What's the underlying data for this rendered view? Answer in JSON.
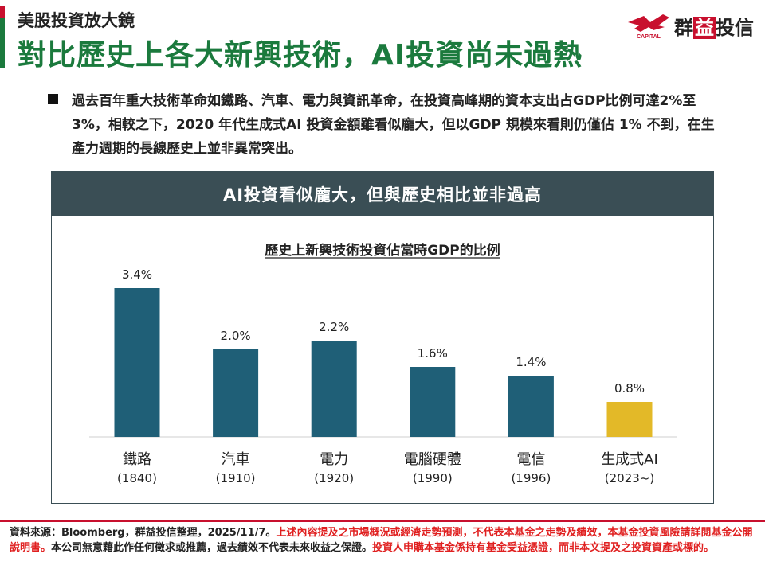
{
  "header": {
    "kicker": "美股投資放大鏡",
    "title": "對比歷史上各大新興技術，AI投資尚未過熱",
    "brand": {
      "name_pre": "群",
      "name_hl": "益",
      "name_post": "投信",
      "logo_icon": "eagle-logo-icon",
      "logo_caption": "CAPITAL"
    }
  },
  "bullet": "過去百年重大技術革命如鐵路、汽車、電力與資訊革命，在投資高峰期的資本支出占GDP比例可達2%至3%，相較之下，2020 年代生成式AI 投資金額雖看似龐大，但以GDP 規模來看則仍僅佔 1% 不到，在生產力週期的長線歷史上並非異常突出。",
  "panel": {
    "title": "AI投資看似龐大，但與歷史相比並非過高"
  },
  "chart_data": {
    "type": "bar",
    "title": "歷史上新興技術投資佔當時GDP的比例",
    "categories": [
      "鐵路",
      "汽車",
      "電力",
      "電腦硬體",
      "電信",
      "生成式AI"
    ],
    "years": [
      "(1840)",
      "(1910)",
      "(1920)",
      "(1990)",
      "(1996)",
      "(2023~)"
    ],
    "values": [
      3.4,
      2.0,
      2.2,
      1.6,
      1.4,
      0.8
    ],
    "value_labels": [
      "3.4%",
      "2.0%",
      "2.2%",
      "1.6%",
      "1.4%",
      "0.8%"
    ],
    "ylim": [
      0,
      3.4
    ],
    "grid": false,
    "colors": [
      "#1f5f77",
      "#1f5f77",
      "#1f5f77",
      "#1f5f77",
      "#1f5f77",
      "#e3b928"
    ]
  },
  "footer": {
    "source": "資料來源：Bloomberg，群益投信整理，2025/11/7。",
    "warning1": "上述內容提及之市場概況或經濟走勢預測，不代表本基金之走勢及績效，本基金投資風險請詳閱基金公開說明書。",
    "disclaimer": "本公司無意藉此作任何徵求或推薦，過去績效不代表未來收益之保證。",
    "warning2": "投資人申購本基金係持有基金受益憑證，而非本文提及之投資資產或標的。"
  },
  "colors": {
    "accent_green": "#1b7a3d",
    "brand_red": "#c8102e",
    "panel_header": "#3a4e55",
    "bar": "#1f5f77",
    "highlight_bar": "#e3b928"
  }
}
